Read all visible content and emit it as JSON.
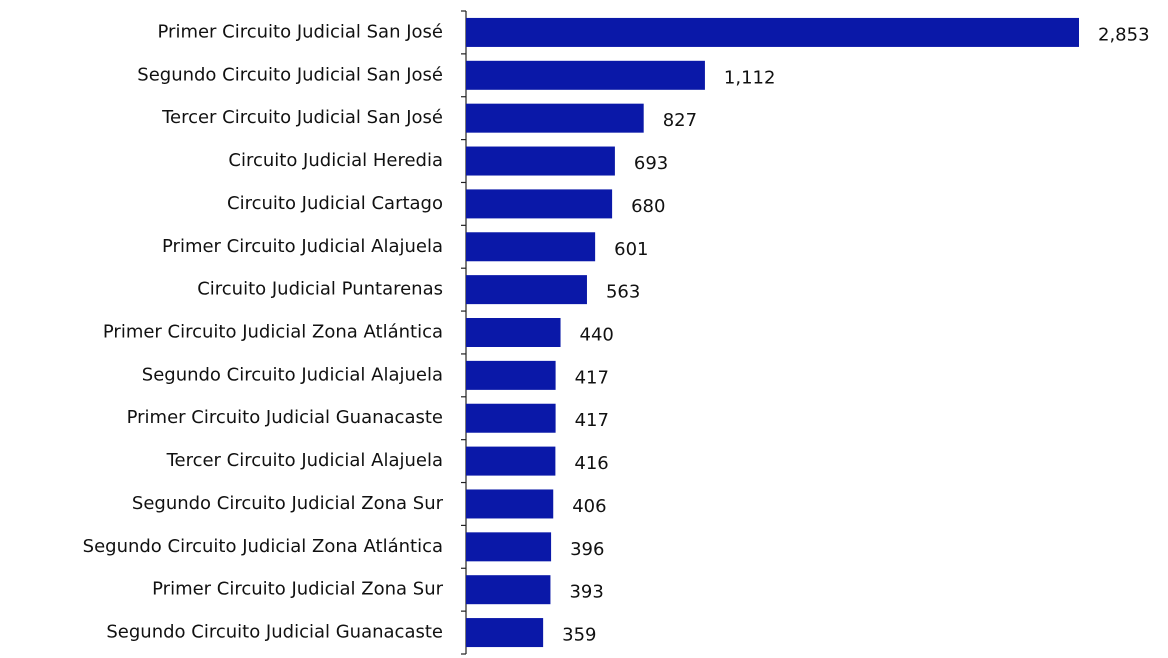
{
  "chart_data": {
    "type": "bar",
    "orientation": "horizontal",
    "color": "#0a18a8",
    "categories": [
      "Primer Circuito Judicial San José",
      "Segundo Circuito Judicial San José",
      "Tercer Circuito Judicial San José",
      "Circuito Judicial Heredia",
      "Circuito Judicial Cartago",
      "Primer Circuito Judicial Alajuela",
      "Circuito Judicial Puntarenas",
      "Primer Circuito Judicial Zona Atlántica",
      "Segundo Circuito Judicial Alajuela",
      "Primer Circuito Judicial Guanacaste",
      "Tercer Circuito Judicial Alajuela",
      "Segundo Circuito Judicial Zona Sur",
      "Segundo Circuito Judicial Zona Atlántica",
      "Primer Circuito Judicial Zona Sur",
      "Segundo Circuito Judicial Guanacaste"
    ],
    "values": [
      2853,
      1112,
      827,
      693,
      680,
      601,
      563,
      440,
      417,
      417,
      416,
      406,
      396,
      393,
      359
    ],
    "value_labels": [
      "2,853",
      "1,112",
      "827",
      "693",
      "680",
      "601",
      "563",
      "440",
      "417",
      "417",
      "416",
      "406",
      "396",
      "393",
      "359"
    ]
  }
}
